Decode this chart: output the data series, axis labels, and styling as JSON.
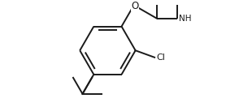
{
  "bg_color": "#ffffff",
  "line_color": "#1a1a1a",
  "lw": 1.4,
  "fig_width": 2.78,
  "fig_height": 1.32,
  "dpi": 100,
  "ring_r": 0.52,
  "xlim": [
    -1.85,
    2.05
  ],
  "ylim": [
    -1.05,
    0.85
  ]
}
